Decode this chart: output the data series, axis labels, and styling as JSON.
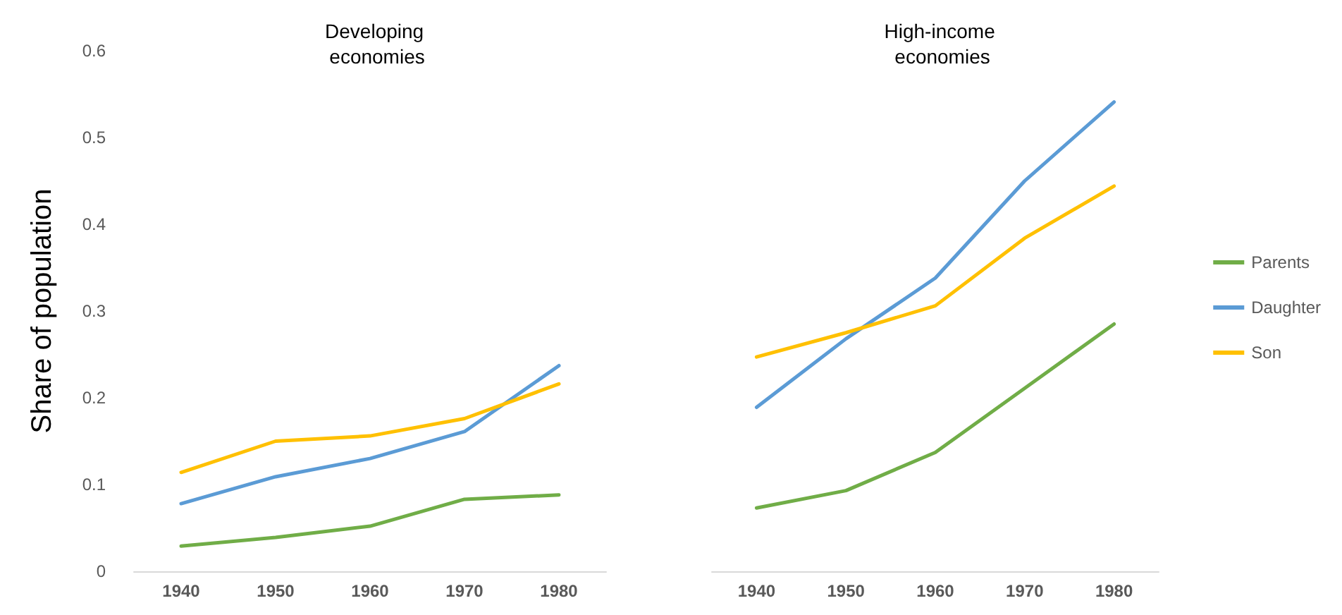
{
  "chart_data": [
    {
      "type": "line",
      "title": "Developing economies",
      "ylabel": "Share of population",
      "x": [
        1940,
        1950,
        1960,
        1970,
        1980
      ],
      "xlim": [
        1935,
        1985
      ],
      "xticks": [
        1940,
        1950,
        1960,
        1970,
        1980
      ],
      "ylim": [
        0,
        0.6
      ],
      "yticks": [
        0,
        0.1,
        0.2,
        0.3,
        0.4,
        0.5,
        0.6
      ],
      "grid": false,
      "marker": "none",
      "line_style": "solid",
      "series": [
        {
          "color": "#70ad47",
          "values": [
            0.029,
            0.039,
            0.052,
            0.083,
            0.088
          ]
        },
        {
          "color": "#5b9bd5",
          "values": [
            0.078,
            0.109,
            0.13,
            0.161,
            0.237
          ]
        },
        {
          "color": "#ffc000",
          "values": [
            0.114,
            0.15,
            0.156,
            0.176,
            0.216
          ]
        }
      ]
    },
    {
      "type": "line",
      "title": "High-income economies",
      "x": [
        1940,
        1950,
        1960,
        1970,
        1980
      ],
      "xlim": [
        1935,
        1985
      ],
      "xticks": [
        1940,
        1950,
        1960,
        1970,
        1980
      ],
      "ylim": [
        0,
        0.6
      ],
      "yticks": [
        0,
        0.1,
        0.2,
        0.3,
        0.4,
        0.5,
        0.6
      ],
      "tick_labels": "x",
      "grid": false,
      "legend": "right",
      "marker": "none",
      "line_style": "solid",
      "series": [
        {
          "name": "Parents",
          "color": "#70ad47",
          "values": [
            0.073,
            0.093,
            0.137,
            0.211,
            0.285
          ]
        },
        {
          "name": "Daughter",
          "color": "#5b9bd5",
          "values": [
            0.189,
            0.268,
            0.338,
            0.45,
            0.541
          ]
        },
        {
          "name": "Son",
          "color": "#ffc000",
          "values": [
            0.247,
            0.275,
            0.306,
            0.384,
            0.444
          ]
        }
      ]
    }
  ]
}
